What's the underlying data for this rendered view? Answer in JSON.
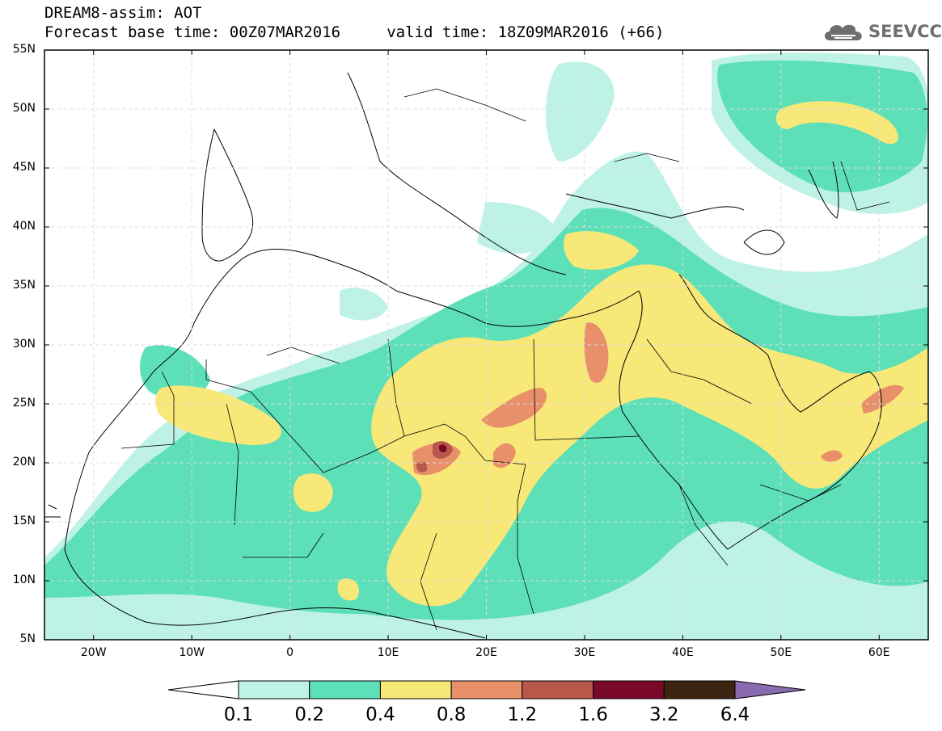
{
  "header": {
    "line1": "DREAM8-assim: AOT",
    "line2": "Forecast base time: 00Z07MAR2016     valid time: 18Z09MAR2016 (+66)"
  },
  "logo": {
    "text": "SEEVCCC",
    "icon": "cloud-icon"
  },
  "map": {
    "lat_range": [
      5,
      55
    ],
    "lon_range": [
      -25,
      65
    ],
    "y_ticks": [
      "55N",
      "50N",
      "45N",
      "40N",
      "35N",
      "30N",
      "25N",
      "20N",
      "15N",
      "10N",
      "5N"
    ],
    "x_ticks": [
      "20W",
      "10W",
      "0",
      "10E",
      "20E",
      "30E",
      "40E",
      "50E",
      "60E"
    ],
    "frame_color": "#000000"
  },
  "colorbar": {
    "labels": [
      "0.1",
      "0.2",
      "0.4",
      "0.8",
      "1.2",
      "1.6",
      "3.2",
      "6.4"
    ],
    "colors": [
      "#ffffff",
      "#bff2e6",
      "#5de0b8",
      "#f7e878",
      "#e8906a",
      "#b8584a",
      "#7a0828",
      "#3c2410",
      "#8a6ab0"
    ]
  }
}
